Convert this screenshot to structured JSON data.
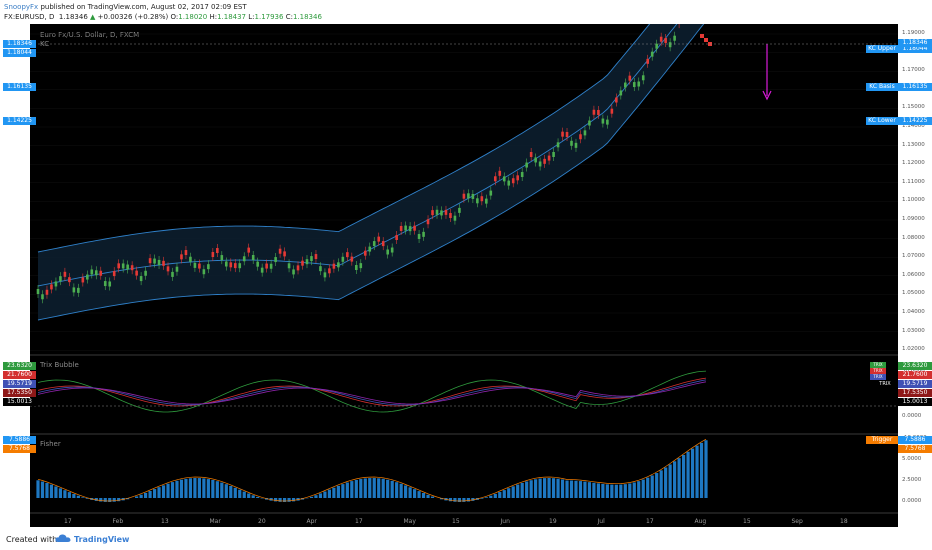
{
  "header": {
    "author": "SnoopyFx",
    "published": "published on TradingView.com, August 02, 2017 02:09 EST",
    "symbol": "FX:EURUSD, D",
    "last": "1.18346",
    "change_arrow": "▲",
    "change": "+0.00326 (+0.28%)",
    "o_label": "O:",
    "o_val": "1.18020",
    "h_label": "H:",
    "h_val": "1.18437",
    "l_label": "L:",
    "l_val": "1.17936",
    "c_label": "C:",
    "c_val": "1.18346"
  },
  "price_pane": {
    "title": "Euro Fx/U.S. Dollar, D, FXCM",
    "sub": "KC",
    "y_ticks": [
      "1.19000",
      "1.18000",
      "1.17000",
      "1.16000",
      "1.15000",
      "1.14000",
      "1.13000",
      "1.12000",
      "1.11000",
      "1.10000",
      "1.09000",
      "1.08000",
      "1.07000",
      "1.06000",
      "1.05000",
      "1.04000",
      "1.03000",
      "1.02000"
    ],
    "left_tags": [
      "1.18346",
      "1.18044",
      "1.16135",
      "1.14225"
    ],
    "right_labels": [
      {
        "name": "KC Upper",
        "value": "1.18044"
      },
      {
        "name": "KC Basis",
        "value": "1.16135"
      },
      {
        "name": "KC Lower",
        "value": "1.14225"
      }
    ],
    "last_tag": "1.18346"
  },
  "trix_pane": {
    "title": "Trix Bubble",
    "y_ticks": [
      "20.0000",
      "10.0000",
      "0.0000",
      "-10.0000"
    ],
    "left_tags": [
      "23.6320",
      "21.7600",
      "19.5719",
      "17.5350",
      "15.0013"
    ],
    "right_tags": [
      "23.6320",
      "21.7600",
      "19.5719",
      "17.5350",
      "15.0013"
    ],
    "right_mini": [
      "TRIX",
      "TRIX",
      "TRIX"
    ],
    "trix_label": "TRIX"
  },
  "fisher_pane": {
    "title": "Fisher",
    "y_ticks": [
      "5.0000",
      "2.5000",
      "0.0000"
    ],
    "left_tags": [
      "7.5886",
      "7.5768"
    ],
    "right_label": "Trigger",
    "right_tags": [
      "7.5886",
      "7.5768"
    ]
  },
  "x_axis": [
    "17",
    "Feb",
    "13",
    "Mar",
    "20",
    "Apr",
    "17",
    "May",
    "15",
    "Jun",
    "19",
    "Jul",
    "17",
    "Aug",
    "15",
    "Sep",
    "18"
  ],
  "footer": {
    "created": "Created with",
    "brand": "TradingView"
  },
  "colors": {
    "bull": "#4caf50",
    "bear": "#e53935",
    "kc_line": "#2f80c9",
    "kc_fill": "#0c1e2e",
    "trix_green": "#2e9a3d",
    "trix_red": "#d32f2f",
    "trix_blue": "#3f51b5",
    "trix_purple": "#8e24aa",
    "fisher_bar": "#1e78c2",
    "fisher_trigger": "#f57c00",
    "arrow": "#d81bd8"
  },
  "icons": [
    "tradingview-cloud-icon",
    "down-arrow-icon",
    "signal-marker-icon"
  ]
}
